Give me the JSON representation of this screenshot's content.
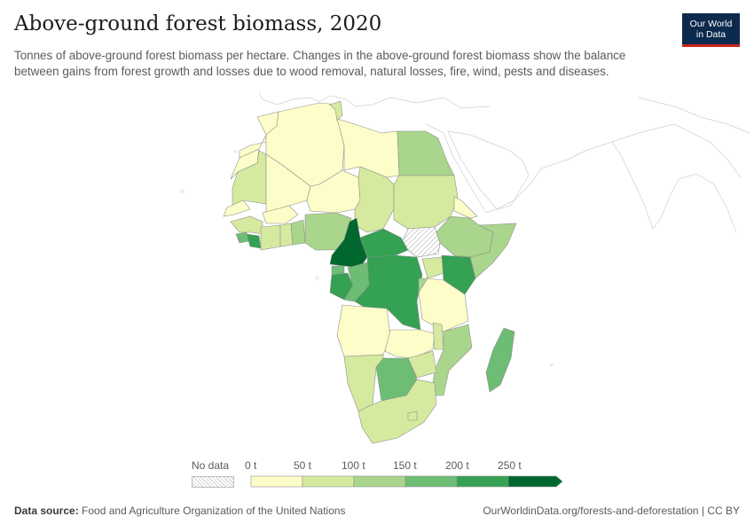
{
  "header": {
    "title": "Above-ground forest biomass, 2020",
    "subtitle": "Tonnes of above-ground forest biomass per hectare. Changes in the above-ground forest biomass show the balance between gains from forest growth and losses due to wood removal, natural losses, fire, wind, pests and diseases."
  },
  "logo": {
    "line1": "Our World",
    "line2": "in Data",
    "bg": "#0c2a4d",
    "accent": "#ce261e"
  },
  "legend": {
    "no_data_label": "No data",
    "ticks": [
      "0 t",
      "50 t",
      "100 t",
      "150 t",
      "200 t",
      "250 t"
    ],
    "colors": [
      "#fdfdc9",
      "#d6ea9f",
      "#a9d68c",
      "#6dbd74",
      "#34a153",
      "#00672f"
    ]
  },
  "footer": {
    "source_label": "Data source:",
    "source_text": "Food and Agriculture Organization of the United Nations",
    "url_text": "OurWorldinData.org/forests-and-deforestation | CC BY"
  }
}
